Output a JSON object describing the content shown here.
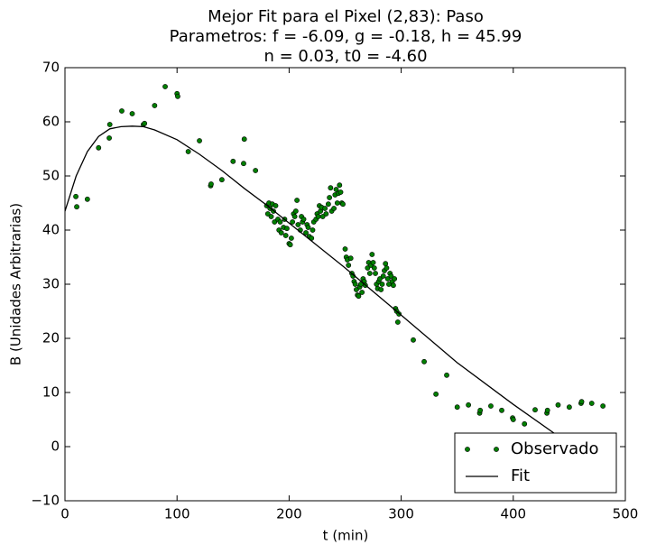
{
  "chart_data": {
    "type": "scatter",
    "title": [
      "Mejor Fit para el Pixel (2,83): Paso",
      "Parametros: f = -6.09, g = -0.18, h = 45.99",
      "n = 0.03, t0 = -4.60"
    ],
    "x_label": "t (min)",
    "y_label": "B (Unidades Arbitrarias)",
    "xlim": [
      0,
      500
    ],
    "ylim": [
      -10,
      70
    ],
    "xticks": [
      0,
      100,
      200,
      300,
      400,
      500
    ],
    "yticks": [
      {
        "value": -10,
        "label": "−10"
      },
      0,
      10,
      20,
      30,
      40,
      50,
      60,
      70
    ],
    "legend": "lower right",
    "series": [
      {
        "name": "Observado",
        "color": "#007f00",
        "style": "points",
        "x": [
          9.7,
          10.5,
          20,
          30,
          39.5,
          40,
          50.7,
          60,
          70,
          71,
          80,
          89.4,
          100,
          100.6,
          110,
          120,
          130,
          130.4,
          140,
          150,
          159.4,
          160,
          170,
          180,
          181,
          182,
          183,
          184,
          185,
          186,
          187,
          188,
          190,
          191,
          192,
          193,
          195,
          196,
          197,
          198,
          200,
          201,
          202,
          203,
          204,
          205,
          206,
          207,
          208,
          210,
          211,
          212,
          213,
          215,
          216,
          217,
          218,
          220,
          221,
          222,
          224,
          225,
          226,
          227,
          228,
          229,
          230,
          232,
          233,
          235,
          236,
          237,
          238,
          240,
          241,
          242,
          243,
          244,
          245,
          246,
          247,
          248,
          250,
          251,
          252,
          253,
          255,
          256,
          257,
          258,
          259,
          260,
          261,
          262,
          263,
          264,
          265,
          266,
          267,
          268,
          270,
          271,
          272,
          273,
          274,
          275,
          276,
          277,
          278,
          279,
          280,
          281,
          282,
          283,
          284,
          285,
          286,
          287,
          288,
          289,
          290,
          291,
          292,
          293,
          294,
          295,
          296,
          297,
          298,
          310.8,
          320.5,
          331,
          340.6,
          350,
          360,
          370,
          370.5,
          380,
          389.7,
          399.4,
          400,
          410,
          419.5,
          430,
          430.5,
          440,
          450,
          460.5,
          461,
          470,
          480
        ],
        "values": [
          46.2,
          44.3,
          45.7,
          55.2,
          57,
          59.5,
          62,
          61.5,
          59.5,
          59.7,
          63,
          66.5,
          65.2,
          64.7,
          54.5,
          56.5,
          48.2,
          48.5,
          49.3,
          52.7,
          52.3,
          56.8,
          51,
          44.5,
          43,
          45,
          44,
          42.5,
          44.8,
          43.5,
          41.5,
          44.5,
          42,
          40,
          41.5,
          39.5,
          40.5,
          42,
          39,
          40.3,
          37.5,
          37.3,
          38.5,
          41.5,
          43,
          42.5,
          43.5,
          45.5,
          41,
          40,
          42.5,
          41.5,
          42,
          39.5,
          41,
          40.5,
          38.8,
          38.5,
          40,
          41.5,
          42,
          43,
          42.5,
          44.5,
          43.5,
          44.2,
          42.5,
          44,
          43,
          44.8,
          46,
          47.8,
          43.5,
          44,
          46.5,
          47.5,
          45,
          46.8,
          48.3,
          47,
          45,
          44.8,
          36.5,
          35,
          34.5,
          33.5,
          34.8,
          32,
          31.5,
          30.5,
          30,
          29,
          28,
          27.8,
          29.5,
          30,
          28.5,
          31,
          30.5,
          29.8,
          33,
          34,
          32,
          33.5,
          35.5,
          34,
          33,
          32,
          30,
          29.2,
          30.5,
          31,
          29,
          30,
          31.5,
          32.5,
          33.8,
          33,
          31,
          30,
          32,
          31.5,
          30.5,
          29.8,
          31,
          25.5,
          25,
          23,
          24.5,
          19.7,
          15.7,
          9.7,
          13.2,
          7.3,
          7.7,
          6.2,
          6.7,
          7.5,
          6.7,
          5.3,
          5,
          4.2,
          6.8,
          6.2,
          6.7,
          7.7,
          7.3,
          8,
          8.3,
          8,
          7.5
        ]
      },
      {
        "name": "Fit",
        "color": "#000000",
        "style": "line",
        "x": [
          0,
          10,
          20,
          30,
          40,
          50,
          60,
          70,
          80,
          100,
          120,
          140,
          160,
          180,
          200,
          250,
          300,
          350,
          400,
          450,
          480
        ],
        "values": [
          43.5,
          50,
          54.5,
          57.3,
          58.7,
          59.1,
          59.2,
          59.1,
          58.5,
          56.7,
          54,
          51,
          47.7,
          44.6,
          41.3,
          33,
          24.3,
          15.5,
          7.8,
          0.5,
          -3.5
        ]
      }
    ]
  }
}
